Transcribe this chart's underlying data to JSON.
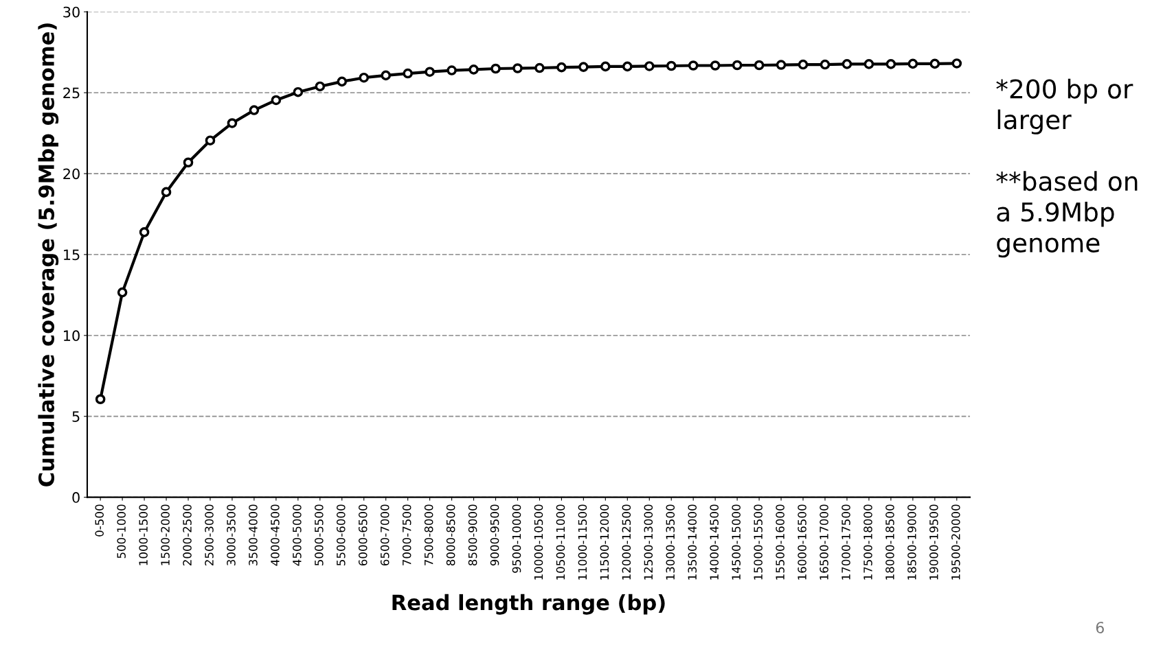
{
  "chart_data": {
    "type": "line",
    "xlabel": "Read length range (bp)",
    "ylabel": "Cumulative coverage (5.9Mbp genome)",
    "categories": [
      "0-500",
      "500-1000",
      "1000-1500",
      "1500-2000",
      "2000-2500",
      "2500-3000",
      "3000-3500",
      "3500-4000",
      "4000-4500",
      "4500-5000",
      "5000-5500",
      "5500-6000",
      "6000-6500",
      "6500-7000",
      "7000-7500",
      "7500-8000",
      "8000-8500",
      "8500-9000",
      "9000-9500",
      "9500-10000",
      "10000-10500",
      "10500-11000",
      "11000-11500",
      "11500-12000",
      "12000-12500",
      "12500-13000",
      "13000-13500",
      "13500-14000",
      "14000-14500",
      "14500-15000",
      "15000-15500",
      "15500-16000",
      "16000-16500",
      "16500-17000",
      "17000-17500",
      "17500-18000",
      "18000-18500",
      "18500-19000",
      "19000-19500",
      "19500-20000"
    ],
    "series": [
      {
        "color": "#000000",
        "values": [
          6.06,
          12.66,
          16.38,
          18.86,
          20.69,
          22.05,
          23.12,
          23.92,
          24.54,
          25.04,
          25.39,
          25.69,
          25.93,
          26.07,
          26.19,
          26.29,
          26.38,
          26.43,
          26.49,
          26.51,
          26.53,
          26.57,
          26.59,
          26.62,
          26.62,
          26.64,
          26.66,
          26.68,
          26.68,
          26.7,
          26.7,
          26.72,
          26.74,
          26.74,
          26.77,
          26.77,
          26.77,
          26.79,
          26.79,
          26.81
        ]
      }
    ],
    "ylim": [
      0,
      30
    ],
    "yticks": [
      0,
      5,
      10,
      15,
      20,
      25,
      30
    ],
    "grid": "y",
    "marker": "circle",
    "line_style": "solid",
    "annotations": [
      "*200 bp or\nlarger\n\n**based on\na 5.9Mbp\ngenome",
      "6"
    ]
  }
}
